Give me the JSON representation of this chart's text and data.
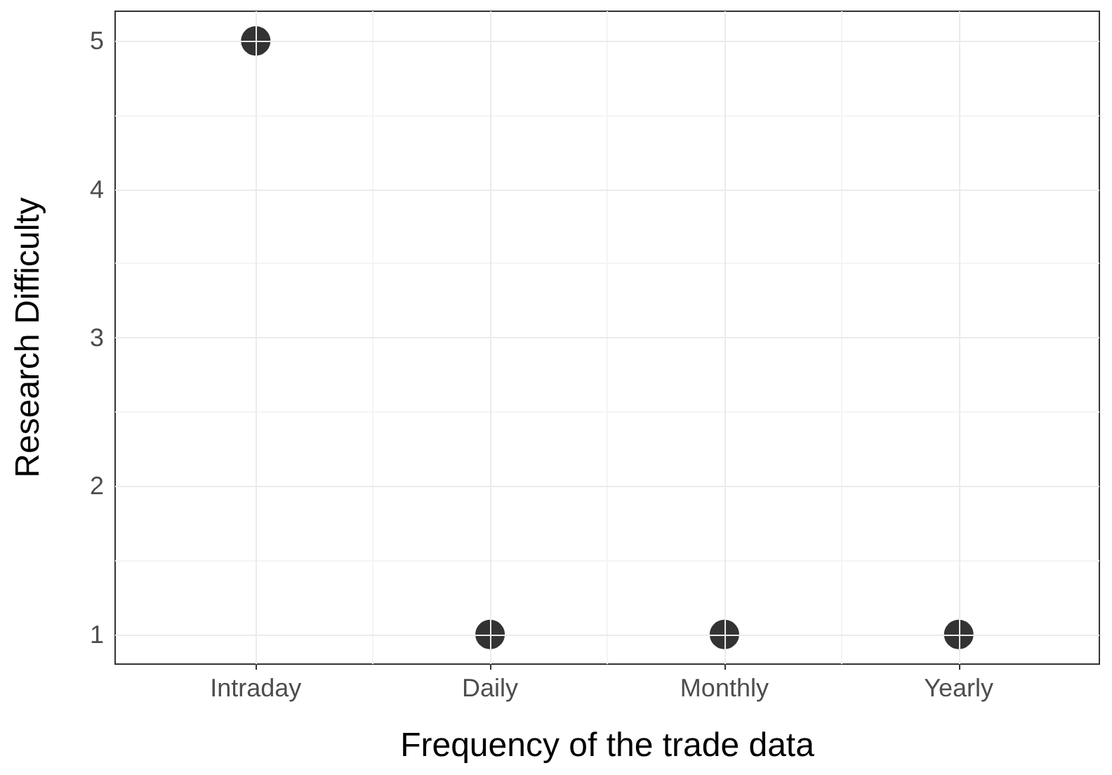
{
  "chart_data": {
    "type": "scatter",
    "xlabel": "Frequency of the trade data",
    "ylabel": "Research Difficulty",
    "categories": [
      "Intraday",
      "Daily",
      "Monthly",
      "Yearly"
    ],
    "values": [
      5,
      1,
      1,
      1
    ],
    "color": "#000000",
    "ylim": [
      0.8,
      5.2
    ],
    "yticks": [
      1,
      2,
      3,
      4,
      5
    ],
    "grid": true,
    "marker": "circle"
  }
}
